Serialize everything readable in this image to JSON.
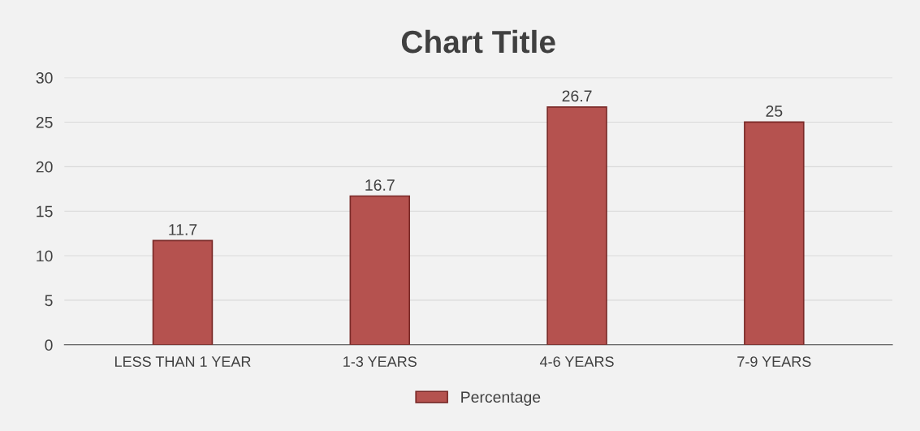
{
  "chart_data": {
    "type": "bar",
    "title": "Chart Title",
    "categories": [
      "LESS THAN 1 YEAR",
      "1-3 YEARS",
      "4-6 YEARS",
      "7-9 YEARS"
    ],
    "series": [
      {
        "name": "Percentage",
        "color": "#b5524f",
        "values": [
          11.7,
          16.7,
          26.7,
          25
        ]
      }
    ],
    "ylim": [
      0,
      30
    ],
    "yticks": [
      0,
      5,
      10,
      15,
      20,
      25,
      30
    ],
    "grid": "y",
    "legend": "bottom",
    "data_labels": true
  }
}
